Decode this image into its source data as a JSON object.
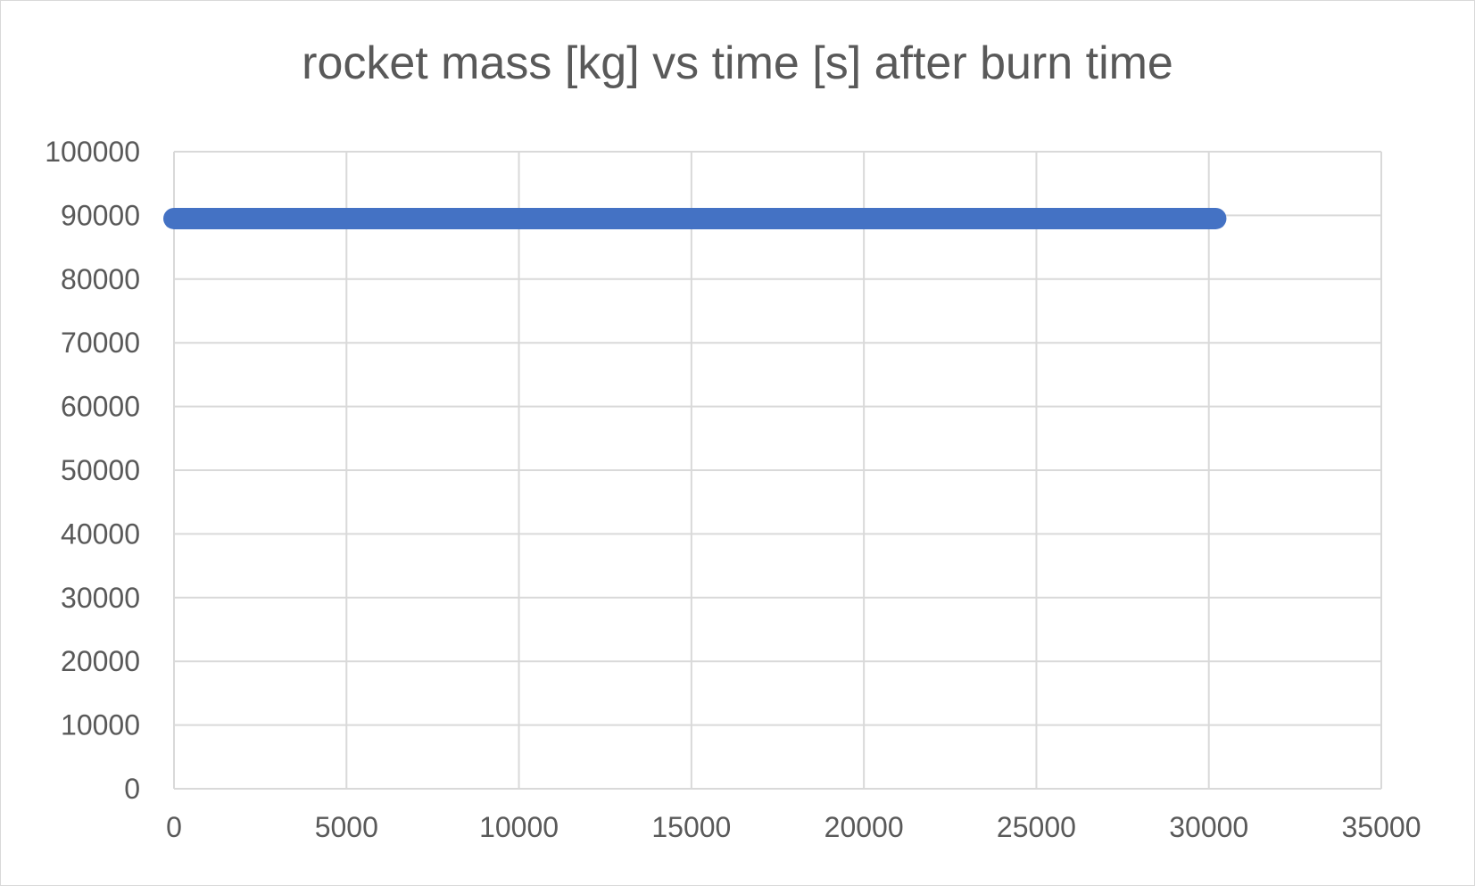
{
  "chart_data": {
    "type": "scatter",
    "title": "rocket mass [kg] vs time [s] after burn time",
    "xlabel": "",
    "ylabel": "",
    "xlim": [
      0,
      35000
    ],
    "ylim": [
      0,
      100000
    ],
    "xticks": [
      0,
      5000,
      10000,
      15000,
      20000,
      25000,
      30000,
      35000
    ],
    "yticks": [
      0,
      10000,
      20000,
      30000,
      40000,
      50000,
      60000,
      70000,
      80000,
      90000,
      100000
    ],
    "grid": true,
    "legend": "none",
    "series": [
      {
        "color": "#4472C4",
        "x_start": 0,
        "x_end": 30200,
        "y_constant": 89500
      }
    ]
  }
}
